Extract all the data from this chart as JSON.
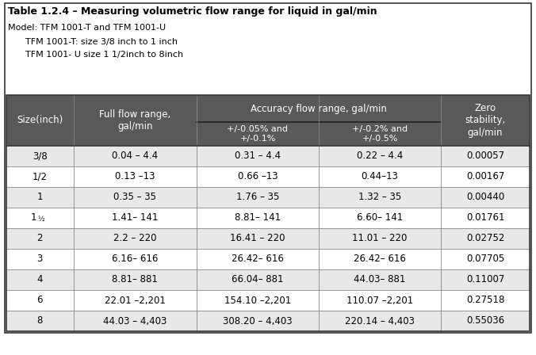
{
  "title": "Table 1.2.4 – Measuring volumetric flow range for liquid in gal/min",
  "model_line": "Model: TFM 1001-T and TFM 1001-U",
  "sub_line1": "TFM 1001-T: size 3/8 inch to 1 inch",
  "sub_line2": "TFM 1001- U size 1 1/2inch to 8inch",
  "header_bg": "#595959",
  "header_text_color": "#ffffff",
  "row_bg_odd": "#e8e8e8",
  "row_bg_even": "#ffffff",
  "outer_border": "#333333",
  "inner_border": "#888888",
  "title_border": "#333333",
  "rows": [
    [
      "3/8",
      "0.04 – 4.4",
      "0.31 – 4.4",
      "0.22 – 4.4",
      "0.00057"
    ],
    [
      "1/2",
      "0.13 –13",
      "0.66 –13",
      "0.44–13",
      "0.00167"
    ],
    [
      "1",
      "0.35 – 35",
      "1.76 – 35",
      "1.32 – 35",
      "0.00440"
    ],
    [
      "1$_{1/2}$",
      "1.41– 141",
      "8.81– 141",
      "6.60– 141",
      "0.01761"
    ],
    [
      "2",
      "2.2 – 220",
      "16.41 – 220",
      "11.01 – 220",
      "0.02752"
    ],
    [
      "3",
      "6.16– 616",
      "26.42– 616",
      "26.42– 616",
      "0.07705"
    ],
    [
      "4",
      "8.81– 881",
      "66.04– 881",
      "44.03– 881",
      "0.11007"
    ],
    [
      "6",
      "22.01 –2,201",
      "154.10 –2,201",
      "110.07 –2,201",
      "0.27518"
    ],
    [
      "8",
      "44.03 – 4,403",
      "308.20 – 4,403",
      "220.14 – 4,403",
      "0.55036"
    ]
  ],
  "figsize": [
    6.76,
    4.48
  ],
  "dpi": 100
}
